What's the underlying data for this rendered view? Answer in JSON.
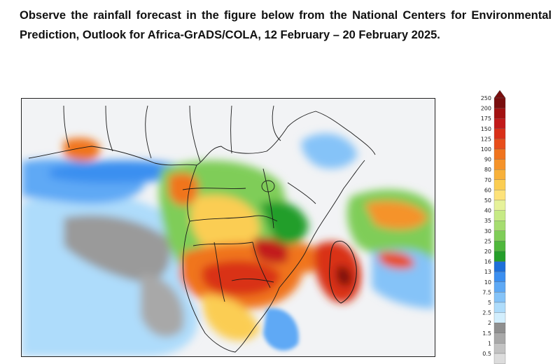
{
  "intro_text": "Observe the rainfall forecast in the figure below from the National Centers for Environmental Prediction, Outlook for Africa-GrADS/COLA, 12 February – 20 February 2025.",
  "legend": {
    "units": "",
    "levels": [
      "250",
      "200",
      "175",
      "150",
      "125",
      "100",
      "90",
      "80",
      "70",
      "60",
      "50",
      "40",
      "35",
      "30",
      "25",
      "20",
      "16",
      "13",
      "10",
      "7.5",
      "5",
      "2.5",
      "2",
      "1.5",
      "1",
      "0.5"
    ],
    "colors": [
      "#7a0e0e",
      "#a31212",
      "#c21a1a",
      "#d93019",
      "#e84e1b",
      "#f0741e",
      "#f5932a",
      "#f8b13a",
      "#fbcd52",
      "#fde27a",
      "#e6f29a",
      "#c6ea85",
      "#a6dd70",
      "#7fcd58",
      "#4fb83c",
      "#249e2a",
      "#1e6fd9",
      "#3b8ff0",
      "#5ea9f5",
      "#85c3f8",
      "#aedcfb",
      "#d2eefd",
      "#8f8f8f",
      "#a8a8a8",
      "#c2c2c2",
      "#dcdcdc"
    ]
  },
  "map": {
    "type": "precipitation-forecast",
    "region": "Africa"
  }
}
